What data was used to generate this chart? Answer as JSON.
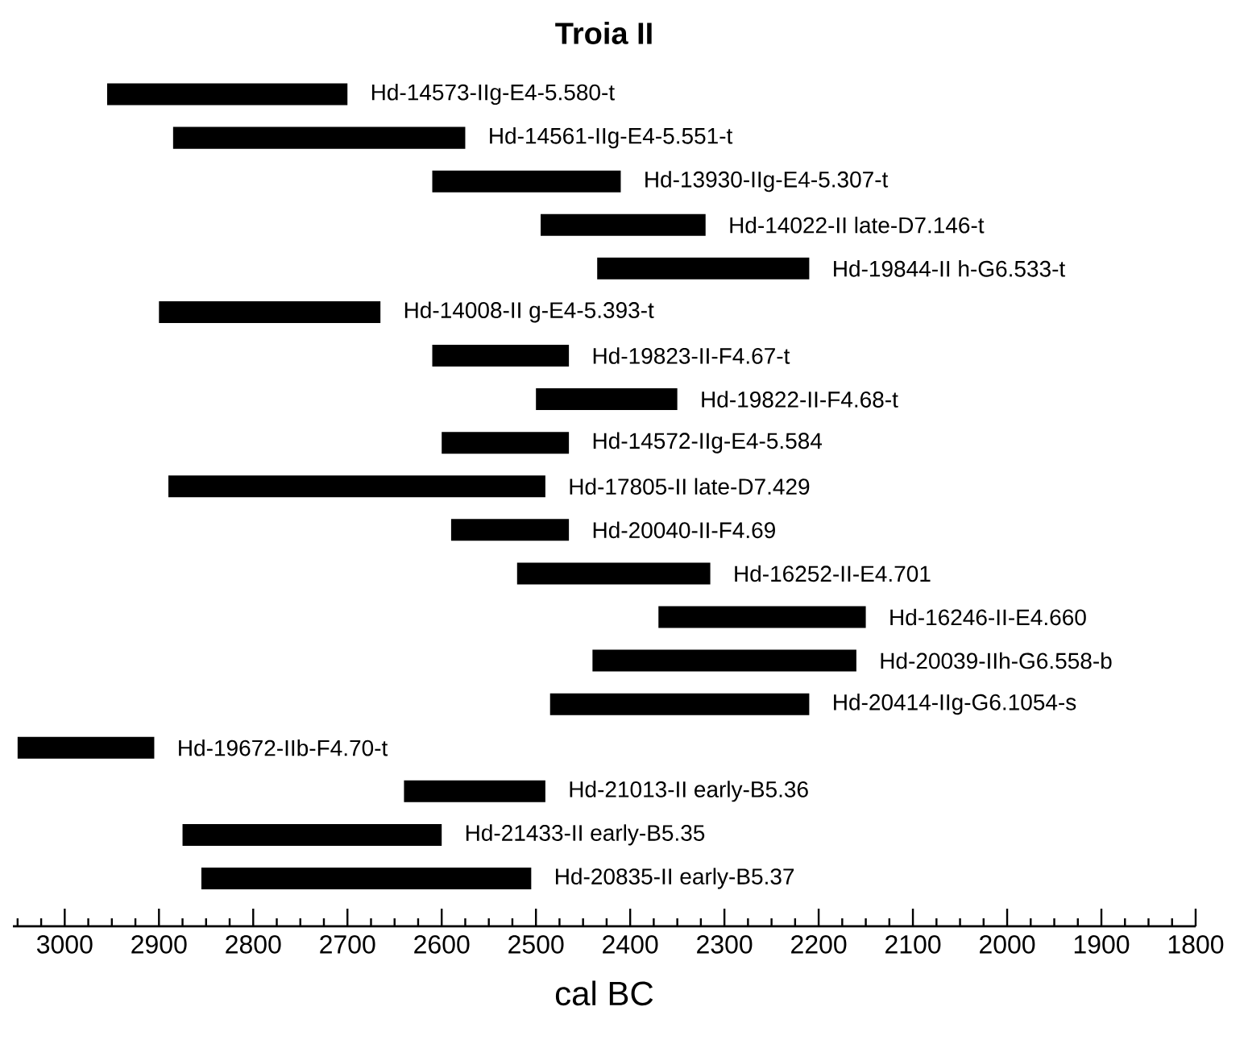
{
  "chart_data": {
    "type": "bar",
    "orientation": "horizontal",
    "title": "Troia II",
    "xlabel": "cal BC",
    "categories": [
      "Hd-14573-IIg-E4-5.580-t",
      "Hd-14561-IIg-E4-5.551-t",
      "Hd-13930-IIg-E4-5.307-t",
      "Hd-14022-II late-D7.146-t",
      "Hd-19844-II h-G6.533-t",
      "Hd-14008-II g-E4-5.393-t",
      "Hd-19823-II-F4.67-t",
      "Hd-19822-II-F4.68-t",
      "Hd-14572-IIg-E4-5.584",
      "Hd-17805-II late-D7.429",
      "Hd-20040-II-F4.69",
      "Hd-16252-II-E4.701",
      "Hd-16246-II-E4.660",
      "Hd-20039-IIh-G6.558-b",
      "Hd-20414-IIg-G6.1054-s",
      "Hd-19672-IIb-F4.70-t",
      "Hd-21013-II early-B5.36",
      "Hd-21433-II early-B5.35",
      "Hd-20835-II early-B5.37"
    ],
    "base": [
      2700,
      2575,
      2410,
      2320,
      2210,
      2665,
      2465,
      2350,
      2465,
      2490,
      2465,
      2315,
      2150,
      2160,
      2210,
      2905,
      2490,
      2600,
      2505
    ],
    "values": [
      255,
      310,
      200,
      175,
      225,
      235,
      145,
      150,
      135,
      400,
      125,
      205,
      220,
      280,
      275,
      145,
      150,
      275,
      350
    ],
    "color": "#000000",
    "xlim": [
      3055,
      1800
    ],
    "xticks": [
      3000,
      2900,
      2800,
      2700,
      2600,
      2500,
      2400,
      2300,
      2200,
      2100,
      2000,
      1900,
      1800
    ]
  }
}
